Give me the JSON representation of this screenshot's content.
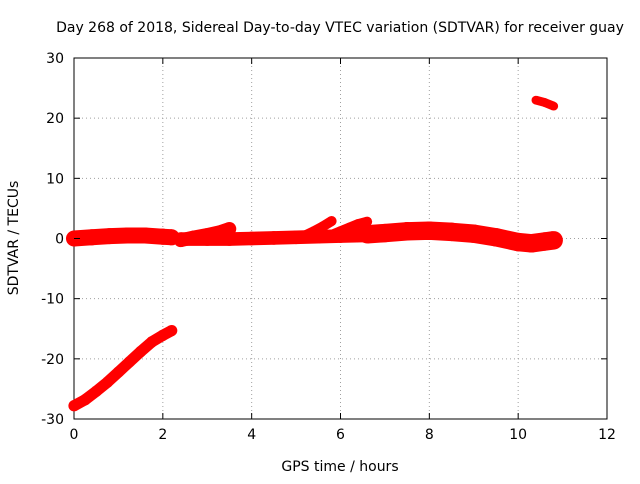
{
  "chart_data": {
    "type": "scatter",
    "title": "Day 268 of 2018, Sidereal Day-to-day VTEC variation (SDTVAR) for receiver guay",
    "xlabel": "GPS time / hours",
    "ylabel": "SDTVAR / TECUs",
    "xlim": [
      0,
      12
    ],
    "ylim": [
      -30,
      30
    ],
    "xticks": [
      0,
      2,
      4,
      6,
      8,
      10,
      12
    ],
    "yticks": [
      -30,
      -20,
      -10,
      0,
      10,
      20,
      30
    ],
    "grid": true,
    "color": "#ff0000",
    "series": [
      {
        "segments": [
          {
            "x": [
              0.0,
              0.25,
              0.5,
              0.75,
              1.0,
              1.25,
              1.5,
              1.75,
              2.0,
              2.2
            ],
            "y": [
              -27.8,
              -26.8,
              -25.4,
              -23.9,
              -22.2,
              -20.5,
              -18.8,
              -17.2,
              -16.1,
              -15.3
            ],
            "halfwidth": 0.6
          },
          {
            "x": [
              0.0,
              0.4,
              0.8,
              1.2,
              1.6,
              2.0,
              2.2
            ],
            "y": [
              0.0,
              0.2,
              0.4,
              0.5,
              0.5,
              0.3,
              0.2
            ],
            "halfwidth": 1.0
          },
          {
            "x": [
              2.4,
              2.7,
              3.0,
              3.3,
              3.5
            ],
            "y": [
              -0.3,
              0.2,
              0.6,
              1.1,
              1.6
            ],
            "halfwidth": 0.8
          },
          {
            "x": [
              2.4,
              3.0,
              3.5,
              4.0,
              4.5,
              5.0,
              5.5,
              6.0,
              6.6
            ],
            "y": [
              -0.1,
              -0.1,
              -0.1,
              0.0,
              0.1,
              0.2,
              0.3,
              0.4,
              0.5
            ],
            "halfwidth": 0.8
          },
          {
            "x": [
              5.2,
              5.4,
              5.6,
              5.8
            ],
            "y": [
              0.5,
              1.2,
              2.0,
              2.9
            ],
            "halfwidth": 0.5
          },
          {
            "x": [
              5.8,
              6.0,
              6.2,
              6.4,
              6.6
            ],
            "y": [
              0.6,
              1.2,
              1.8,
              2.4,
              2.8
            ],
            "halfwidth": 0.5
          },
          {
            "x": [
              6.6,
              7.0,
              7.5,
              8.0,
              8.5,
              9.0,
              9.5,
              10.0,
              10.3,
              10.6,
              10.8
            ],
            "y": [
              0.7,
              0.9,
              1.2,
              1.3,
              1.1,
              0.8,
              0.2,
              -0.6,
              -0.8,
              -0.5,
              -0.3
            ],
            "halfwidth": 1.2
          },
          {
            "x": [
              10.4,
              10.6,
              10.8
            ],
            "y": [
              23.0,
              22.6,
              22.0
            ],
            "halfwidth": 0.4
          }
        ]
      }
    ]
  }
}
